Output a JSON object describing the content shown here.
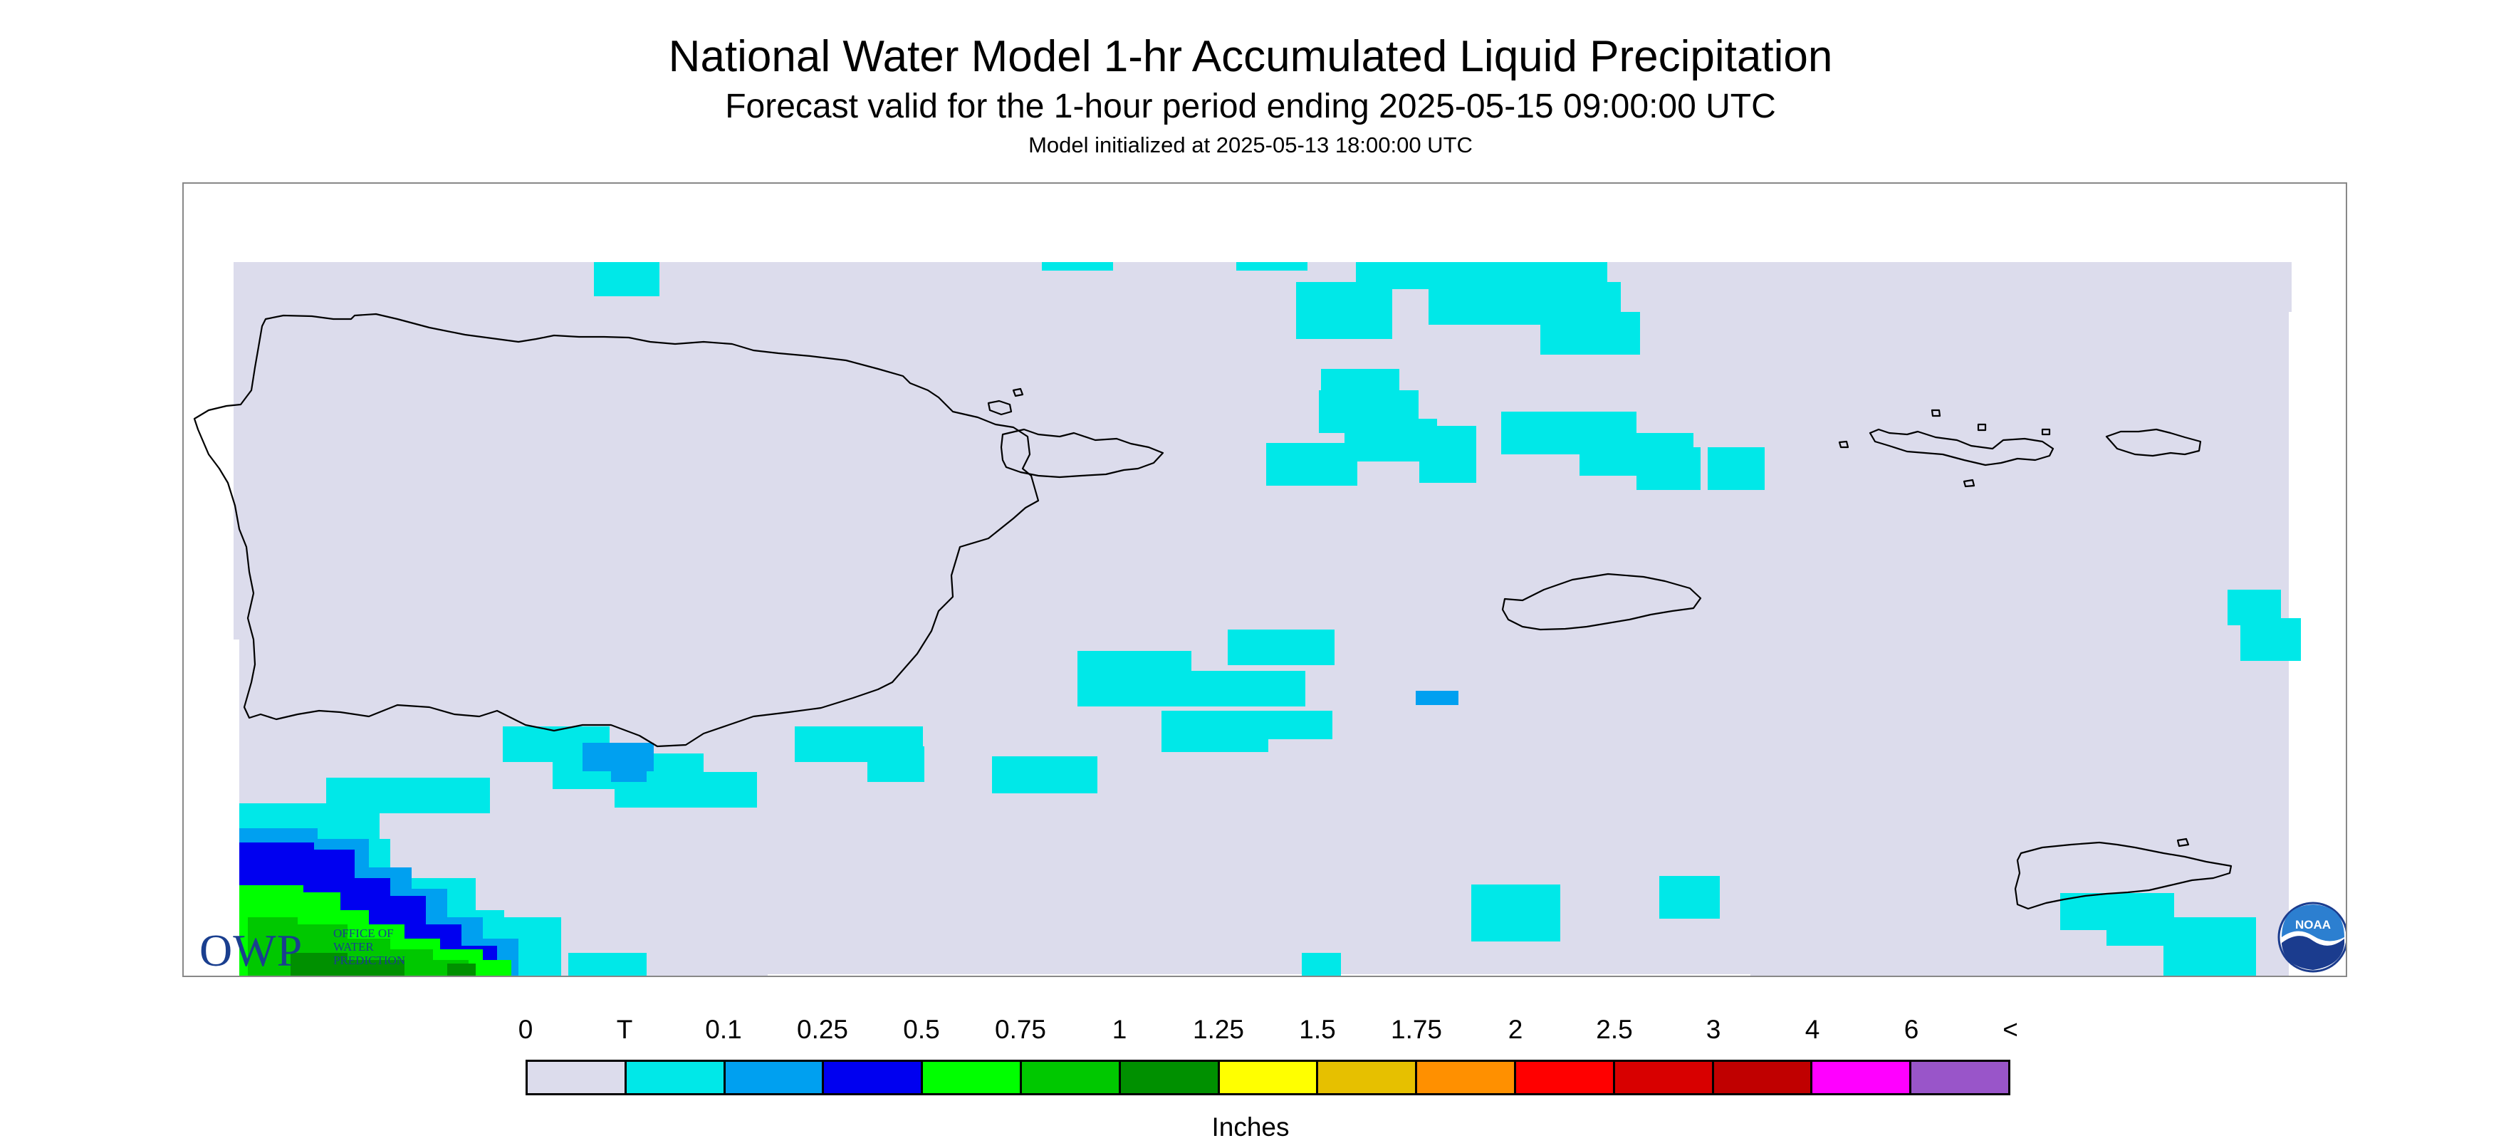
{
  "header": {
    "title": "National Water Model 1-hr Accumulated Liquid Precipitation",
    "subtitle": "Forecast valid for the 1-hour period ending 2025-05-15 09:00:00 UTC",
    "init_line": "Model initialized at 2025-05-13 18:00:00 UTC"
  },
  "map": {
    "region": "Puerto Rico and U.S. Virgin Islands",
    "background_color": "#dcdcec",
    "coastline_color": "#000000"
  },
  "logos": {
    "owp": {
      "acronym": "OWP",
      "line1": "OFFICE OF",
      "line2": "WATER",
      "line3": "PREDICTION"
    },
    "noaa": {
      "text": "NOAA"
    }
  },
  "legend": {
    "tick_labels": [
      "0",
      "T",
      "0.1",
      "0.25",
      "0.5",
      "0.75",
      "1",
      "1.25",
      "1.5",
      "1.75",
      "2",
      "2.5",
      "3",
      "4",
      "6",
      "<"
    ],
    "colors": [
      "#dcdcec",
      "#00e8e8",
      "#00a0f0",
      "#0000f0",
      "#00ff00",
      "#00c800",
      "#009000",
      "#ffff00",
      "#e6c000",
      "#ff9000",
      "#ff0000",
      "#d80000",
      "#c00000",
      "#ff00ff",
      "#9955c9"
    ],
    "unit_label": "Inches"
  }
}
